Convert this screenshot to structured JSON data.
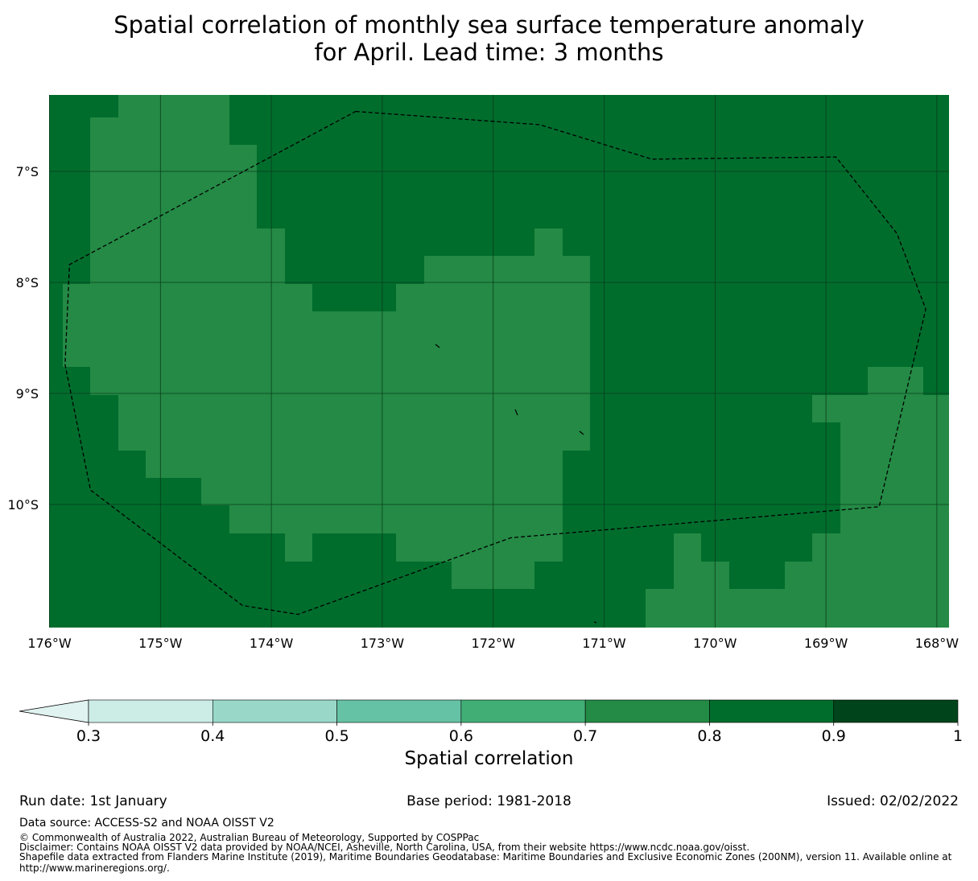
{
  "title_line1": "Spatial correlation of monthly sea surface temperature anomaly",
  "title_line2": "for April. Lead time: 3 months",
  "colors": {
    "cell_0_7_0_8": "#248a45",
    "cell_0_8_0_9": "#006d2c",
    "gridline": "#0a3d1c",
    "boundary": "#000000"
  },
  "map": {
    "lon_range": [
      -176.0,
      -167.9
    ],
    "lat_range": [
      -11.1,
      -6.3
    ],
    "xticks": [
      {
        "lon": -176,
        "label": "176°W"
      },
      {
        "lon": -175,
        "label": "175°W"
      },
      {
        "lon": -174,
        "label": "174°W"
      },
      {
        "lon": -173,
        "label": "173°W"
      },
      {
        "lon": -172,
        "label": "172°W"
      },
      {
        "lon": -171,
        "label": "171°W"
      },
      {
        "lon": -170,
        "label": "170°W"
      },
      {
        "lon": -169,
        "label": "169°W"
      },
      {
        "lon": -168,
        "label": "168°W"
      }
    ],
    "yticks": [
      {
        "lat": -7,
        "label": "7°S"
      },
      {
        "lat": -8,
        "label": "8°S"
      },
      {
        "lat": -9,
        "label": "9°S"
      },
      {
        "lat": -10,
        "label": "10°S"
      }
    ],
    "light_cell_value": 0.75,
    "dark_cell_value": 0.85,
    "eez_boundary": [
      [
        -173.24,
        -6.46
      ],
      [
        -171.58,
        -6.58
      ],
      [
        -170.57,
        -6.89
      ],
      [
        -168.91,
        -6.87
      ],
      [
        -168.36,
        -7.56
      ],
      [
        -168.1,
        -8.24
      ],
      [
        -168.52,
        -10.02
      ],
      [
        -171.84,
        -10.3
      ],
      [
        -173.76,
        -10.99
      ],
      [
        -174.26,
        -10.91
      ],
      [
        -175.63,
        -9.87
      ],
      [
        -175.86,
        -8.74
      ],
      [
        -175.82,
        -7.84
      ],
      [
        -173.24,
        -6.46
      ]
    ]
  },
  "colorbar": {
    "label": "Spatial correlation",
    "ticks": [
      "0.3",
      "0.4",
      "0.5",
      "0.6",
      "0.7",
      "0.8",
      "0.9",
      "1"
    ],
    "colors": [
      "#e0f3f1",
      "#ccece6",
      "#99d8c9",
      "#66c2a4",
      "#41ae76",
      "#238b45",
      "#006d2c",
      "#00441b"
    ],
    "extend": "min"
  },
  "footer": {
    "run_date": "Run date: 1st January",
    "base_period": "Base period: 1981-2018",
    "issued": "Issued: 02/02/2022",
    "data_source": "Data source: ACCESS-S2 and NOAA OISST V2",
    "copyright": "© Commonwealth of Australia 2022, Australian Bureau of Meteorology, Supported by COSPPac",
    "disclaimer": "Disclaimer: Contains NOAA OISST V2 data provided by NOAA/NCEI, Asheville, North Carolina, USA, from their website https://www.ncdc.noaa.gov/oisst.",
    "shapefile_line1": "Shapefile data extracted from Flanders Marine Institute (2019), Maritime Boundaries Geodatabase: Maritime Boundaries and Exclusive Economic Zones (200NM), version 11. Available online at",
    "shapefile_line2": "http://www.marineregions.org/."
  }
}
